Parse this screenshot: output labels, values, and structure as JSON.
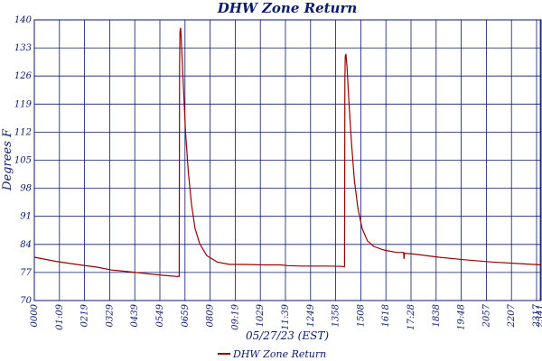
{
  "chart_data": {
    "type": "line",
    "title": "DHW Zone Return",
    "xlabel": "05/27/23 (EST)",
    "ylabel": "Degrees F",
    "ylim": [
      70,
      140
    ],
    "yticks": [
      70,
      77,
      84,
      91,
      98,
      105,
      112,
      119,
      126,
      133,
      140
    ],
    "xlim_minutes": [
      0,
      1441
    ],
    "xtick_labels": [
      "0000",
      "01:09",
      "0219",
      "0329",
      "0439",
      "0549",
      "0659",
      "0809",
      "09:19",
      "1029",
      "11:39",
      "1249",
      "1358",
      "1508",
      "1618",
      "17:28",
      "1838",
      "19:48",
      "2057",
      "2207",
      "2317",
      "2341"
    ],
    "grid": true,
    "legend_position": "bottom-center",
    "colors": {
      "series": "#990000",
      "grid": "#0a1a6e",
      "text": "#0a1a6e"
    },
    "series": [
      {
        "name": "DHW Zone Return",
        "points": [
          [
            0,
            80.8
          ],
          [
            60,
            79.8
          ],
          [
            120,
            79.0
          ],
          [
            180,
            78.3
          ],
          [
            220,
            77.6
          ],
          [
            280,
            77.1
          ],
          [
            330,
            76.6
          ],
          [
            380,
            76.2
          ],
          [
            405,
            76.0
          ],
          [
            412,
            76.0
          ],
          [
            413,
            128.0
          ],
          [
            414,
            137.0
          ],
          [
            416,
            138.0
          ],
          [
            419,
            133.0
          ],
          [
            424,
            123.0
          ],
          [
            430,
            112.0
          ],
          [
            438,
            102.0
          ],
          [
            447,
            94.0
          ],
          [
            457,
            88.0
          ],
          [
            470,
            84.2
          ],
          [
            490,
            81.2
          ],
          [
            520,
            79.6
          ],
          [
            555,
            79.0
          ],
          [
            600,
            79.0
          ],
          [
            650,
            78.9
          ],
          [
            700,
            78.9
          ],
          [
            720,
            78.7
          ],
          [
            760,
            78.6
          ],
          [
            800,
            78.6
          ],
          [
            840,
            78.6
          ],
          [
            875,
            78.5
          ],
          [
            882,
            78.4
          ],
          [
            883,
            125.0
          ],
          [
            884,
            131.0
          ],
          [
            886,
            131.5
          ],
          [
            889,
            128.5
          ],
          [
            895,
            119.0
          ],
          [
            902,
            109.0
          ],
          [
            910,
            100.0
          ],
          [
            920,
            93.0
          ],
          [
            932,
            88.0
          ],
          [
            947,
            84.9
          ],
          [
            965,
            83.5
          ],
          [
            990,
            82.7
          ],
          [
            1000,
            82.5
          ],
          [
            1030,
            82.0
          ],
          [
            1050,
            82.0
          ],
          [
            1051,
            80.4
          ],
          [
            1053,
            81.8
          ],
          [
            1080,
            81.6
          ],
          [
            1150,
            80.8
          ],
          [
            1220,
            80.2
          ],
          [
            1300,
            79.6
          ],
          [
            1380,
            79.2
          ],
          [
            1441,
            78.9
          ]
        ]
      }
    ]
  }
}
